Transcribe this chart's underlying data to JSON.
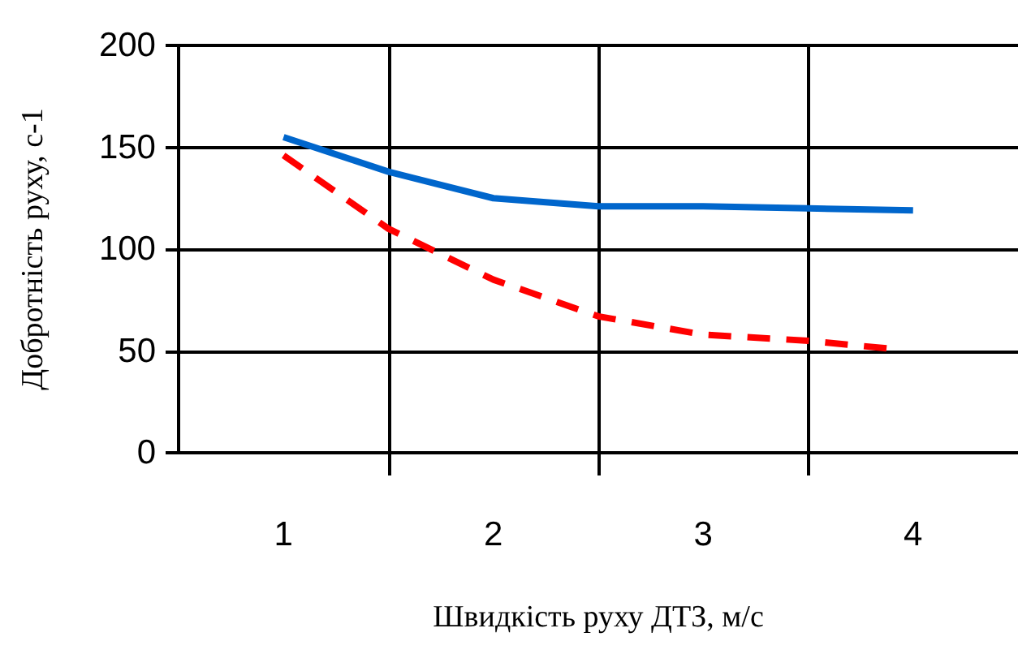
{
  "chart_data": {
    "type": "line",
    "xlabel": "Швидкість руху ДТЗ, м/с",
    "ylabel": "Добротність руху, с-1",
    "xlim": [
      0.5,
      4.5
    ],
    "xticks": [
      {
        "value": 1.5,
        "label": null
      },
      1,
      {
        "value": 2.5,
        "label": null
      },
      2,
      {
        "value": 3.5,
        "label": null
      },
      3,
      4
    ],
    "ylim": [
      0,
      200
    ],
    "yticks": [
      0,
      50,
      100,
      150,
      200
    ],
    "grid": true,
    "marker": "none",
    "series": [
      {
        "color": "#0066cc",
        "line_style": "solid",
        "x": [
          1,
          1.5,
          2,
          2.5,
          3,
          3.5,
          4
        ],
        "values": [
          155,
          138,
          125,
          121,
          121,
          120,
          119
        ]
      },
      {
        "color": "#ff0000",
        "line_style": "dashed",
        "x": [
          1,
          1.5,
          2,
          2.5,
          3,
          3.5,
          3.9
        ],
        "values": [
          146,
          110,
          85,
          67,
          58,
          55,
          51
        ]
      }
    ]
  }
}
